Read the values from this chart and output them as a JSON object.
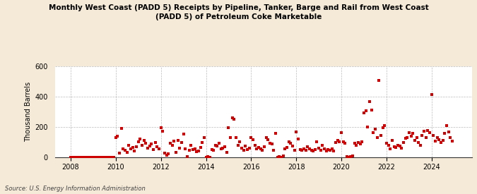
{
  "title": "Monthly West Coast (PADD 5) Receipts by Pipeline, Tanker, Barge and Rail from West Coast\n(PADD 5) of Petroleum Coke Marketable",
  "ylabel": "Thousand Barrels",
  "source": "Source: U.S. Energy Information Administration",
  "background_color": "#f5ead8",
  "plot_bg_color": "#ffffff",
  "marker_color": "#cc0000",
  "marker_size": 5,
  "ylim": [
    0,
    600
  ],
  "yticks": [
    0,
    200,
    400,
    600
  ],
  "xticks": [
    2008,
    2010,
    2012,
    2014,
    2016,
    2018,
    2020,
    2022,
    2024
  ],
  "xlim": [
    2007.3,
    2025.8
  ],
  "data": {
    "2008-01": 0,
    "2008-02": 0,
    "2008-03": 0,
    "2008-04": 0,
    "2008-05": 0,
    "2008-06": 0,
    "2008-07": 0,
    "2008-08": 0,
    "2008-09": 0,
    "2008-10": 0,
    "2008-11": 0,
    "2008-12": 0,
    "2009-01": 0,
    "2009-02": 0,
    "2009-03": 0,
    "2009-04": 0,
    "2009-05": 0,
    "2009-06": 0,
    "2009-07": 0,
    "2009-08": 0,
    "2009-09": 0,
    "2009-10": 0,
    "2009-11": 0,
    "2009-12": 0,
    "2010-01": 130,
    "2010-02": 140,
    "2010-03": 25,
    "2010-04": 190,
    "2010-05": 55,
    "2010-06": 45,
    "2010-07": 30,
    "2010-08": 80,
    "2010-09": 55,
    "2010-10": 65,
    "2010-11": 40,
    "2010-12": 70,
    "2011-01": 100,
    "2011-02": 120,
    "2011-03": 80,
    "2011-04": 110,
    "2011-05": 90,
    "2011-06": 60,
    "2011-07": 75,
    "2011-08": 85,
    "2011-09": 50,
    "2011-10": 95,
    "2011-11": 70,
    "2011-12": 55,
    "2012-01": 195,
    "2012-02": 170,
    "2012-03": 25,
    "2012-04": 15,
    "2012-05": 20,
    "2012-06": 90,
    "2012-07": 80,
    "2012-08": 105,
    "2012-09": 30,
    "2012-10": 110,
    "2012-11": 60,
    "2012-12": 95,
    "2013-01": 150,
    "2013-02": 55,
    "2013-03": 5,
    "2013-04": 45,
    "2013-05": 80,
    "2013-06": 50,
    "2013-07": 55,
    "2013-08": 35,
    "2013-09": 40,
    "2013-10": 65,
    "2013-11": 95,
    "2013-12": 130,
    "2014-01": 0,
    "2014-02": 5,
    "2014-03": 0,
    "2014-04": 50,
    "2014-05": 45,
    "2014-06": 80,
    "2014-07": 75,
    "2014-08": 90,
    "2014-09": 55,
    "2014-10": 60,
    "2014-11": 70,
    "2014-12": 30,
    "2015-01": 195,
    "2015-02": 130,
    "2015-03": 260,
    "2015-04": 250,
    "2015-05": 130,
    "2015-06": 80,
    "2015-07": 100,
    "2015-08": 60,
    "2015-09": 45,
    "2015-10": 75,
    "2015-11": 50,
    "2015-12": 60,
    "2016-01": 130,
    "2016-02": 115,
    "2016-03": 80,
    "2016-04": 55,
    "2016-05": 65,
    "2016-06": 55,
    "2016-07": 45,
    "2016-08": 70,
    "2016-09": 130,
    "2016-10": 115,
    "2016-11": 90,
    "2016-12": 85,
    "2017-01": 45,
    "2017-02": 155,
    "2017-03": 0,
    "2017-04": 5,
    "2017-05": 0,
    "2017-06": 10,
    "2017-07": 55,
    "2017-08": 65,
    "2017-09": 100,
    "2017-10": 90,
    "2017-11": 75,
    "2017-12": 45,
    "2018-01": 165,
    "2018-02": 120,
    "2018-03": 50,
    "2018-04": 45,
    "2018-05": 55,
    "2018-06": 45,
    "2018-07": 70,
    "2018-08": 55,
    "2018-09": 45,
    "2018-10": 40,
    "2018-11": 50,
    "2018-12": 100,
    "2019-01": 60,
    "2019-02": 45,
    "2019-03": 80,
    "2019-04": 55,
    "2019-05": 40,
    "2019-06": 50,
    "2019-07": 45,
    "2019-08": 55,
    "2019-09": 40,
    "2019-10": 95,
    "2019-11": 110,
    "2019-12": 100,
    "2020-01": 160,
    "2020-02": 100,
    "2020-03": 90,
    "2020-04": 5,
    "2020-05": 0,
    "2020-06": 5,
    "2020-07": 10,
    "2020-08": 90,
    "2020-09": 80,
    "2020-10": 95,
    "2020-11": 85,
    "2020-12": 100,
    "2021-01": 290,
    "2021-02": 305,
    "2021-03": 200,
    "2021-04": 365,
    "2021-05": 310,
    "2021-06": 160,
    "2021-07": 185,
    "2021-08": 130,
    "2021-09": 505,
    "2021-10": 145,
    "2021-11": 195,
    "2021-12": 210,
    "2022-01": 90,
    "2022-02": 80,
    "2022-03": 55,
    "2022-04": 110,
    "2022-05": 70,
    "2022-06": 65,
    "2022-07": 80,
    "2022-08": 75,
    "2022-09": 60,
    "2022-10": 95,
    "2022-11": 125,
    "2022-12": 130,
    "2023-01": 160,
    "2023-02": 140,
    "2023-03": 155,
    "2023-04": 110,
    "2023-05": 130,
    "2023-06": 95,
    "2023-07": 80,
    "2023-08": 145,
    "2023-09": 170,
    "2023-10": 130,
    "2023-11": 175,
    "2023-12": 160,
    "2024-01": 410,
    "2024-02": 145,
    "2024-03": 105,
    "2024-04": 130,
    "2024-05": 115,
    "2024-06": 95,
    "2024-07": 110,
    "2024-08": 155,
    "2024-09": 210,
    "2024-10": 165,
    "2024-11": 130,
    "2024-12": 105
  }
}
